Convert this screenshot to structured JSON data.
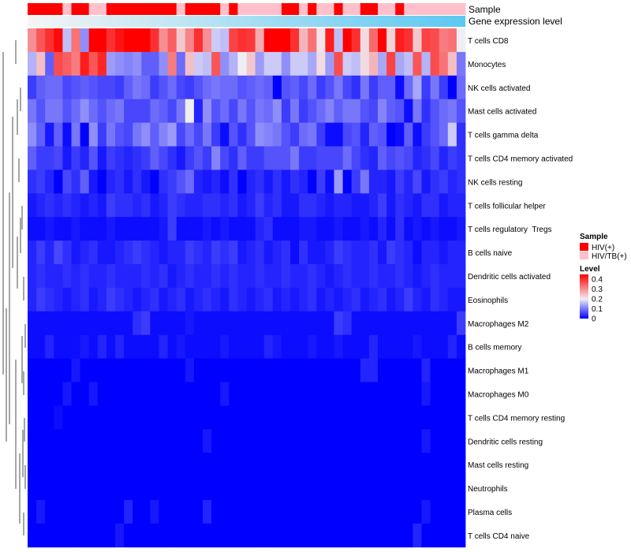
{
  "chart_data": {
    "type": "heatmap",
    "annotation_rows": {
      "sample_label": "Sample",
      "gene_label": "Gene expression level",
      "sample_groups": [
        "HIV(+)",
        "HIV(+)",
        "HIV(+)",
        "HIV(+)",
        "HIV/TB(+)",
        "HIV(+)",
        "HIV(+)",
        "HIV/TB(+)",
        "HIV/TB(+)",
        "HIV(+)",
        "HIV(+)",
        "HIV(+)",
        "HIV(+)",
        "HIV(+)",
        "HIV(+)",
        "HIV(+)",
        "HIV(+)",
        "HIV/TB(+)",
        "HIV(+)",
        "HIV(+)",
        "HIV(+)",
        "HIV(+)",
        "HIV/TB(+)",
        "HIV(+)",
        "HIV/TB(+)",
        "HIV/TB(+)",
        "HIV/TB(+)",
        "HIV/TB(+)",
        "HIV/TB(+)",
        "HIV(+)",
        "HIV(+)",
        "HIV/TB(+)",
        "HIV(+)",
        "HIV/TB(+)",
        "HIV/TB(+)",
        "HIV(+)",
        "HIV/TB(+)",
        "HIV/TB(+)",
        "HIV(+)",
        "HIV(+)",
        "HIV/TB(+)",
        "HIV/TB(+)",
        "HIV(+)",
        "HIV/TB(+)",
        "HIV/TB(+)",
        "HIV/TB(+)",
        "HIV/TB(+)",
        "HIV/TB(+)",
        "HIV/TB(+)",
        "HIV/TB(+)"
      ],
      "gene_expression_gradient": [
        "#f5f5f5",
        "#5bc8f2"
      ]
    },
    "row_labels": [
      "T cells CD8",
      "Monocytes",
      "NK cells activated",
      "Mast cells activated",
      "T cells gamma delta",
      "T cells CD4 memory activated",
      "NK cells resting",
      "T cells follicular helper",
      "T cells regulatory  Tregs",
      "B cells naive",
      "Dendritic cells activated",
      "Eosinophils",
      "Macrophages M2",
      "B cells memory",
      "Macrophages M1",
      "Macrophages M0",
      "T cells CD4 memory resting",
      "Dendritic cells resting",
      "Mast cells resting",
      "Neutrophils",
      "Plasma cells",
      "T cells CD4 naive"
    ],
    "n_columns": 50,
    "values": [
      [
        0.3,
        0.36,
        0.4,
        0.44,
        0.16,
        0.33,
        0.12,
        0.45,
        0.45,
        0.4,
        0.43,
        0.45,
        0.45,
        0.45,
        0.4,
        0.3,
        0.35,
        0.24,
        0.31,
        0.4,
        0.3,
        0.17,
        0.16,
        0.38,
        0.4,
        0.39,
        0.27,
        0.45,
        0.45,
        0.45,
        0.4,
        0.26,
        0.33,
        0.21,
        0.42,
        0.16,
        0.45,
        0.4,
        0.22,
        0.34,
        0.45,
        0.23,
        0.42,
        0.4,
        0.24,
        0.38,
        0.37,
        0.32,
        0.33,
        0.2
      ],
      [
        0.15,
        0.25,
        0.08,
        0.37,
        0.35,
        0.32,
        0.42,
        0.36,
        0.41,
        0.13,
        0.12,
        0.11,
        0.12,
        0.08,
        0.08,
        0.12,
        0.32,
        0.09,
        0.25,
        0.17,
        0.16,
        0.36,
        0.12,
        0.15,
        0.2,
        0.24,
        0.13,
        0.17,
        0.17,
        0.12,
        0.17,
        0.17,
        0.14,
        0.22,
        0.13,
        0.37,
        0.17,
        0.16,
        0.22,
        0.26,
        0.14,
        0.38,
        0.14,
        0.16,
        0.36,
        0.15,
        0.37,
        0.33,
        0.25,
        0.1
      ],
      [
        0.05,
        0.08,
        0.09,
        0.09,
        0.06,
        0.07,
        0.08,
        0.07,
        0.06,
        0.06,
        0.05,
        0.08,
        0.1,
        0.09,
        0.05,
        0.07,
        0.09,
        0.06,
        0.05,
        0.07,
        0.09,
        0.1,
        0.09,
        0.09,
        0.07,
        0.08,
        0.09,
        0.08,
        0.0,
        0.07,
        0.08,
        0.06,
        0.09,
        0.05,
        0.07,
        0.1,
        0.06,
        0.04,
        0.1,
        0.05,
        0.08,
        0.08,
        0.01,
        0.09,
        0.14,
        0.05,
        0.1,
        0.05,
        0.0,
        0.09
      ],
      [
        0.1,
        0.07,
        0.1,
        0.1,
        0.07,
        0.09,
        0.12,
        0.09,
        0.07,
        0.09,
        0.1,
        0.06,
        0.06,
        0.06,
        0.09,
        0.08,
        0.06,
        0.1,
        0.2,
        0.03,
        0.12,
        0.07,
        0.09,
        0.06,
        0.1,
        0.07,
        0.1,
        0.09,
        0.12,
        0.05,
        0.1,
        0.05,
        0.07,
        0.09,
        0.11,
        0.08,
        0.1,
        0.1,
        0.07,
        0.06,
        0.11,
        0.08,
        0.07,
        0.01,
        0.1,
        0.04,
        0.07,
        0.09,
        0.1,
        0.07
      ],
      [
        0.12,
        0.08,
        0.02,
        0.08,
        0.01,
        0.1,
        0.0,
        0.12,
        0.05,
        0.1,
        0.07,
        0.06,
        0.1,
        0.12,
        0.08,
        0.11,
        0.13,
        0.06,
        0.09,
        0.06,
        0.1,
        0.05,
        0.01,
        0.07,
        0.04,
        0.07,
        0.12,
        0.11,
        0.1,
        0.07,
        0.05,
        0.09,
        0.1,
        0.05,
        0.01,
        0.01,
        0.06,
        0.07,
        0.03,
        0.08,
        0.07,
        0.0,
        0.01,
        0.08,
        0.01,
        0.05,
        0.07,
        0.09,
        0.17,
        0.04
      ],
      [
        0.08,
        0.05,
        0.05,
        0.06,
        0.02,
        0.05,
        0.03,
        0.07,
        0.02,
        0.05,
        0.04,
        0.03,
        0.04,
        0.05,
        0.08,
        0.06,
        0.04,
        0.02,
        0.05,
        0.07,
        0.05,
        0.11,
        0.06,
        0.04,
        0.08,
        0.05,
        0.05,
        0.07,
        0.07,
        0.07,
        0.1,
        0.05,
        0.05,
        0.06,
        0.06,
        0.06,
        0.09,
        0.06,
        0.04,
        0.03,
        0.08,
        0.06,
        0.07,
        0.06,
        0.03,
        0.04,
        0.06,
        0.03,
        0.05,
        0.04
      ],
      [
        0.04,
        0.05,
        0.03,
        0.0,
        0.06,
        0.04,
        0.08,
        0.02,
        0.0,
        0.03,
        0.04,
        0.02,
        0.04,
        0.02,
        0.0,
        0.04,
        0.05,
        0.07,
        0.09,
        0.03,
        0.02,
        0.03,
        0.01,
        0.04,
        0.0,
        0.03,
        0.04,
        0.02,
        0.04,
        0.02,
        0.04,
        0.03,
        0.0,
        0.05,
        0.01,
        0.13,
        0.0,
        0.05,
        0.1,
        0.03,
        0.03,
        0.02,
        0.05,
        0.03,
        0.06,
        0.02,
        0.04,
        0.05,
        0.03,
        0.04
      ],
      [
        0.02,
        0.03,
        0.04,
        0.03,
        0.04,
        0.03,
        0.02,
        0.03,
        0.02,
        0.05,
        0.04,
        0.04,
        0.03,
        0.04,
        0.02,
        0.03,
        0.05,
        0.04,
        0.03,
        0.03,
        0.04,
        0.04,
        0.03,
        0.04,
        0.02,
        0.03,
        0.05,
        0.03,
        0.04,
        0.02,
        0.02,
        0.04,
        0.04,
        0.03,
        0.02,
        0.03,
        0.03,
        0.02,
        0.02,
        0.03,
        0.05,
        0.02,
        0.04,
        0.03,
        0.02,
        0.04,
        0.04,
        0.02,
        0.03,
        0.03
      ],
      [
        0.01,
        0.01,
        0.02,
        0.01,
        0.01,
        0.02,
        0.01,
        0.01,
        0.01,
        0.02,
        0.01,
        0.01,
        0.01,
        0.01,
        0.01,
        0.02,
        0.05,
        0.01,
        0.01,
        0.01,
        0.02,
        0.01,
        0.02,
        0.01,
        0.01,
        0.01,
        0.03,
        0.04,
        0.01,
        0.01,
        0.01,
        0.02,
        0.02,
        0.01,
        0.01,
        0.02,
        0.01,
        0.01,
        0.02,
        0.01,
        0.03,
        0.01,
        0.04,
        0.01,
        0.02,
        0.01,
        0.02,
        0.01,
        0.01,
        0.02
      ],
      [
        0.03,
        0.05,
        0.03,
        0.06,
        0.04,
        0.02,
        0.03,
        0.04,
        0.02,
        0.02,
        0.03,
        0.04,
        0.05,
        0.04,
        0.03,
        0.02,
        0.03,
        0.03,
        0.05,
        0.04,
        0.03,
        0.05,
        0.04,
        0.05,
        0.02,
        0.03,
        0.04,
        0.02,
        0.03,
        0.04,
        0.01,
        0.04,
        0.02,
        0.02,
        0.03,
        0.05,
        0.04,
        0.03,
        0.03,
        0.04,
        0.02,
        0.05,
        0.04,
        0.03,
        0.01,
        0.03,
        0.03,
        0.02,
        0.03,
        0.03
      ],
      [
        0.03,
        0.04,
        0.03,
        0.03,
        0.04,
        0.03,
        0.04,
        0.03,
        0.03,
        0.04,
        0.03,
        0.03,
        0.03,
        0.04,
        0.03,
        0.04,
        0.02,
        0.03,
        0.04,
        0.03,
        0.03,
        0.04,
        0.03,
        0.04,
        0.03,
        0.03,
        0.04,
        0.03,
        0.03,
        0.04,
        0.03,
        0.03,
        0.04,
        0.03,
        0.02,
        0.03,
        0.04,
        0.03,
        0.03,
        0.04,
        0.03,
        0.03,
        0.04,
        0.03,
        0.02,
        0.03,
        0.04,
        0.03,
        0.03,
        0.03
      ],
      [
        0.03,
        0.05,
        0.04,
        0.03,
        0.02,
        0.03,
        0.04,
        0.02,
        0.03,
        0.05,
        0.04,
        0.03,
        0.02,
        0.03,
        0.04,
        0.02,
        0.03,
        0.04,
        0.02,
        0.03,
        0.04,
        0.03,
        0.02,
        0.04,
        0.03,
        0.02,
        0.03,
        0.04,
        0.02,
        0.03,
        0.02,
        0.03,
        0.04,
        0.02,
        0.03,
        0.02,
        0.03,
        0.04,
        0.02,
        0.03,
        0.04,
        0.02,
        0.03,
        0.05,
        0.03,
        0.02,
        0.04,
        0.03,
        0.02,
        0.02
      ],
      [
        0.01,
        0.01,
        0.01,
        0.01,
        0.01,
        0.01,
        0.01,
        0.01,
        0.01,
        0.01,
        0.01,
        0.01,
        0.04,
        0.05,
        0.01,
        0.01,
        0.01,
        0.01,
        0.02,
        0.01,
        0.01,
        0.01,
        0.01,
        0.01,
        0.01,
        0.01,
        0.01,
        0.01,
        0.01,
        0.01,
        0.01,
        0.01,
        0.01,
        0.01,
        0.01,
        0.05,
        0.04,
        0.01,
        0.01,
        0.01,
        0.01,
        0.01,
        0.01,
        0.01,
        0.01,
        0.01,
        0.01,
        0.01,
        0.01,
        0.05
      ],
      [
        0.01,
        0.01,
        0.03,
        0.01,
        0.01,
        0.01,
        0.02,
        0.01,
        0.03,
        0.01,
        0.03,
        0.01,
        0.01,
        0.01,
        0.01,
        0.03,
        0.01,
        0.02,
        0.01,
        0.01,
        0.01,
        0.01,
        0.02,
        0.01,
        0.01,
        0.01,
        0.01,
        0.03,
        0.02,
        0.01,
        0.01,
        0.01,
        0.02,
        0.01,
        0.01,
        0.02,
        0.01,
        0.01,
        0.01,
        0.03,
        0.01,
        0.01,
        0.01,
        0.01,
        0.02,
        0.01,
        0.01,
        0.01,
        0.03,
        0.01
      ],
      [
        0.0,
        0.0,
        0.0,
        0.0,
        0.0,
        0.02,
        0.0,
        0.0,
        0.0,
        0.0,
        0.0,
        0.0,
        0.0,
        0.0,
        0.0,
        0.0,
        0.0,
        0.0,
        0.02,
        0.0,
        0.0,
        0.0,
        0.0,
        0.0,
        0.0,
        0.0,
        0.0,
        0.0,
        0.0,
        0.0,
        0.0,
        0.0,
        0.0,
        0.0,
        0.0,
        0.0,
        0.0,
        0.0,
        0.03,
        0.03,
        0.0,
        0.0,
        0.0,
        0.0,
        0.0,
        0.03,
        0.0,
        0.0,
        0.0,
        0.0
      ],
      [
        0.0,
        0.0,
        0.0,
        0.0,
        0.02,
        0.0,
        0.0,
        0.02,
        0.0,
        0.0,
        0.0,
        0.0,
        0.0,
        0.0,
        0.0,
        0.0,
        0.0,
        0.0,
        0.0,
        0.0,
        0.0,
        0.0,
        0.02,
        0.0,
        0.0,
        0.0,
        0.0,
        0.0,
        0.0,
        0.0,
        0.0,
        0.0,
        0.0,
        0.0,
        0.0,
        0.0,
        0.0,
        0.0,
        0.0,
        0.0,
        0.0,
        0.0,
        0.0,
        0.0,
        0.0,
        0.02,
        0.0,
        0.0,
        0.0,
        0.0
      ],
      [
        0.0,
        0.0,
        0.0,
        0.01,
        0.0,
        0.0,
        0.0,
        0.0,
        0.0,
        0.0,
        0.0,
        0.0,
        0.0,
        0.0,
        0.0,
        0.0,
        0.0,
        0.0,
        0.0,
        0.0,
        0.0,
        0.0,
        0.0,
        0.0,
        0.0,
        0.0,
        0.0,
        0.0,
        0.0,
        0.0,
        0.0,
        0.0,
        0.0,
        0.0,
        0.0,
        0.0,
        0.0,
        0.0,
        0.0,
        0.0,
        0.0,
        0.0,
        0.0,
        0.0,
        0.0,
        0.0,
        0.0,
        0.0,
        0.0,
        0.0
      ],
      [
        0.0,
        0.0,
        0.0,
        0.0,
        0.0,
        0.0,
        0.0,
        0.0,
        0.0,
        0.0,
        0.0,
        0.0,
        0.0,
        0.0,
        0.0,
        0.0,
        0.0,
        0.0,
        0.0,
        0.0,
        0.02,
        0.0,
        0.0,
        0.0,
        0.0,
        0.0,
        0.0,
        0.0,
        0.0,
        0.0,
        0.0,
        0.0,
        0.0,
        0.0,
        0.0,
        0.0,
        0.0,
        0.0,
        0.0,
        0.0,
        0.0,
        0.0,
        0.0,
        0.0,
        0.0,
        0.02,
        0.0,
        0.0,
        0.0,
        0.0
      ],
      [
        0.0,
        0.0,
        0.0,
        0.0,
        0.0,
        0.0,
        0.0,
        0.0,
        0.0,
        0.0,
        0.0,
        0.0,
        0.0,
        0.0,
        0.0,
        0.0,
        0.0,
        0.0,
        0.0,
        0.0,
        0.0,
        0.0,
        0.0,
        0.0,
        0.0,
        0.0,
        0.0,
        0.0,
        0.0,
        0.0,
        0.0,
        0.0,
        0.0,
        0.0,
        0.0,
        0.0,
        0.0,
        0.0,
        0.0,
        0.0,
        0.0,
        0.0,
        0.0,
        0.0,
        0.0,
        0.0,
        0.0,
        0.0,
        0.0,
        0.0
      ],
      [
        0.0,
        0.0,
        0.0,
        0.0,
        0.0,
        0.0,
        0.0,
        0.0,
        0.0,
        0.0,
        0.0,
        0.0,
        0.0,
        0.0,
        0.0,
        0.0,
        0.0,
        0.0,
        0.0,
        0.0,
        0.0,
        0.0,
        0.0,
        0.0,
        0.0,
        0.0,
        0.0,
        0.0,
        0.0,
        0.0,
        0.0,
        0.0,
        0.0,
        0.0,
        0.0,
        0.0,
        0.0,
        0.0,
        0.0,
        0.0,
        0.0,
        0.0,
        0.0,
        0.0,
        0.0,
        0.0,
        0.0,
        0.0,
        0.0,
        0.0
      ],
      [
        0.0,
        0.02,
        0.0,
        0.0,
        0.0,
        0.0,
        0.0,
        0.0,
        0.0,
        0.0,
        0.0,
        0.03,
        0.0,
        0.0,
        0.02,
        0.0,
        0.0,
        0.0,
        0.0,
        0.0,
        0.03,
        0.0,
        0.0,
        0.0,
        0.0,
        0.0,
        0.0,
        0.0,
        0.0,
        0.0,
        0.0,
        0.0,
        0.0,
        0.0,
        0.0,
        0.0,
        0.0,
        0.0,
        0.0,
        0.0,
        0.0,
        0.0,
        0.0,
        0.0,
        0.0,
        0.02,
        0.0,
        0.0,
        0.0,
        0.0
      ],
      [
        0.0,
        0.0,
        0.0,
        0.0,
        0.0,
        0.0,
        0.0,
        0.0,
        0.0,
        0.0,
        0.02,
        0.0,
        0.0,
        0.0,
        0.0,
        0.0,
        0.0,
        0.0,
        0.0,
        0.0,
        0.0,
        0.0,
        0.0,
        0.0,
        0.0,
        0.0,
        0.0,
        0.0,
        0.0,
        0.0,
        0.0,
        0.0,
        0.0,
        0.0,
        0.0,
        0.0,
        0.0,
        0.0,
        0.0,
        0.0,
        0.0,
        0.0,
        0.0,
        0.0,
        0.03,
        0.0,
        0.0,
        0.0,
        0.0,
        0.0
      ]
    ],
    "color_scale": {
      "min": 0,
      "mid": 0.2,
      "max": 0.45,
      "low_color": "#0000ff",
      "mid_color": "#f0eef5",
      "high_color": "#ff0000"
    },
    "legend": {
      "sample_title": "Sample",
      "sample_entries": [
        {
          "label": "HIV(+)",
          "color": "#ff0000"
        },
        {
          "label": "HIV/TB(+)",
          "color": "#ffc0cb"
        }
      ],
      "level_title": "Level",
      "level_ticks": [
        "0.4",
        "0.3",
        "0.2",
        "0.1",
        "0"
      ],
      "level_tick_values": [
        0.4,
        0.3,
        0.2,
        0.1,
        0
      ],
      "placement": "right"
    }
  }
}
